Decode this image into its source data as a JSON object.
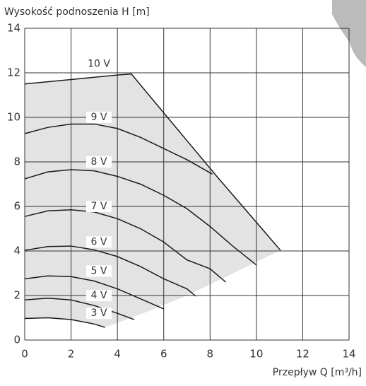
{
  "chart_data": {
    "type": "line",
    "ylabel": "Wysokość podnoszenia H [m]",
    "xlabel": "Przepływ Q [m³/h]",
    "xlim": [
      0,
      14
    ],
    "ylim": [
      0,
      14
    ],
    "xticks": [
      0,
      2,
      4,
      6,
      8,
      10,
      12,
      14
    ],
    "yticks": [
      0,
      2,
      4,
      6,
      8,
      10,
      12,
      14
    ],
    "grid": true,
    "area": {
      "color": "#e3e3e3",
      "x": [
        0,
        2,
        4,
        4.6,
        8.25,
        11.04,
        9,
        7,
        5,
        3.46,
        3,
        2,
        1,
        0
      ],
      "values": [
        11.5,
        11.7,
        11.9,
        11.95,
        7.4,
        4.03,
        3.0,
        2.0,
        1.15,
        0.57,
        0.72,
        0.92,
        1.0,
        0.97
      ]
    },
    "series": [
      {
        "name": "10 V",
        "color": "#1a1a1a",
        "x": [
          0,
          2,
          4,
          4.6,
          8.25,
          11.04
        ],
        "values": [
          11.5,
          11.7,
          11.9,
          11.95,
          7.4,
          4.03
        ]
      },
      {
        "name": "9 V",
        "color": "#1a1a1a",
        "x": [
          0,
          1,
          2,
          3,
          4,
          5,
          6,
          7,
          8.1
        ],
        "values": [
          9.27,
          9.55,
          9.7,
          9.7,
          9.5,
          9.1,
          8.6,
          8.1,
          7.45
        ]
      },
      {
        "name": "8 V",
        "color": "#1a1a1a",
        "x": [
          0,
          1,
          2,
          3,
          4,
          5,
          6,
          7,
          8,
          9,
          10
        ],
        "values": [
          7.24,
          7.55,
          7.65,
          7.6,
          7.35,
          7.0,
          6.5,
          5.9,
          5.1,
          4.2,
          3.37
        ]
      },
      {
        "name": "7 V",
        "color": "#1a1a1a",
        "x": [
          0,
          1,
          2,
          3,
          4,
          5,
          6,
          7,
          8,
          8.68
        ],
        "values": [
          5.55,
          5.8,
          5.85,
          5.75,
          5.45,
          5.0,
          4.4,
          3.6,
          3.2,
          2.6
        ]
      },
      {
        "name": "6 V",
        "color": "#1a1a1a",
        "x": [
          0,
          1,
          2,
          3,
          4,
          5,
          6,
          7,
          7.38
        ],
        "values": [
          4.03,
          4.2,
          4.22,
          4.05,
          3.75,
          3.3,
          2.75,
          2.3,
          1.97
        ]
      },
      {
        "name": "5 V",
        "color": "#1a1a1a",
        "x": [
          0,
          1,
          2,
          3,
          4,
          5,
          6
        ],
        "values": [
          2.75,
          2.88,
          2.85,
          2.65,
          2.3,
          1.85,
          1.4
        ]
      },
      {
        "name": "4 V",
        "color": "#1a1a1a",
        "x": [
          0,
          1,
          2,
          3,
          4,
          4.73
        ],
        "values": [
          1.8,
          1.88,
          1.8,
          1.55,
          1.2,
          0.92
        ]
      },
      {
        "name": "3 V",
        "color": "#1a1a1a",
        "x": [
          0,
          1,
          2,
          3,
          3.46
        ],
        "values": [
          0.97,
          1.0,
          0.92,
          0.72,
          0.57
        ]
      }
    ]
  }
}
